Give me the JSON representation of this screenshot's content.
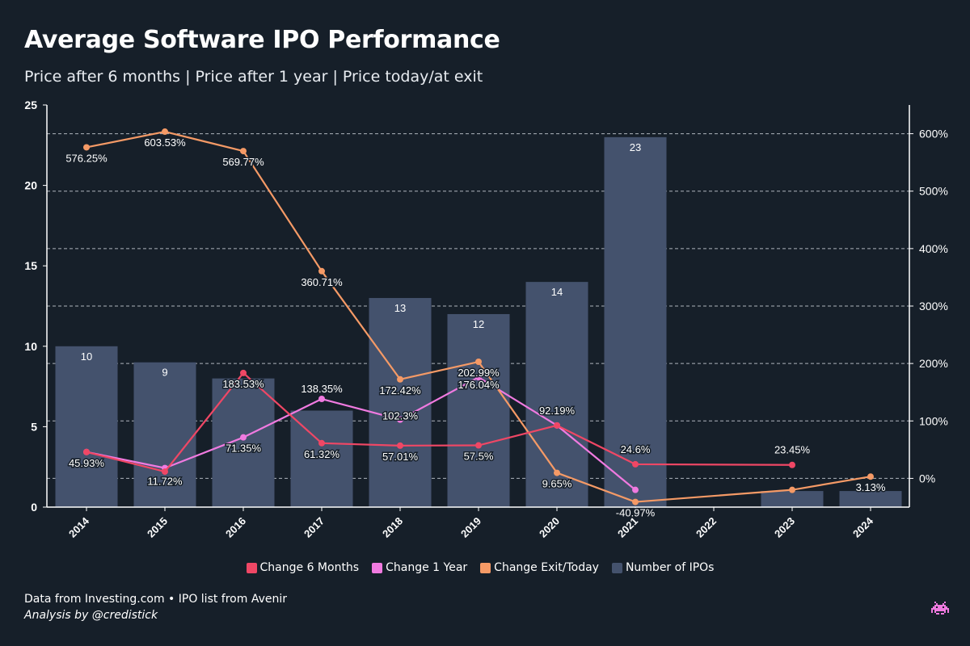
{
  "header": {
    "title": "Average Software IPO Performance",
    "subtitle": "Price after 6 months | Price after 1 year | Price today/at exit"
  },
  "footer": {
    "source": "Data from Investing.com • IPO list from Avenir",
    "credit": "Analysis by @credistick",
    "logo_icon": "space-invader-icon"
  },
  "colors": {
    "background": "#161f29",
    "bars": "#44526d",
    "change_6m": "#ef4765",
    "change_1y": "#f07ae0",
    "change_exit": "#f59a66"
  },
  "chart_data": {
    "type": "bar",
    "categories": [
      "2014",
      "2015",
      "2016",
      "2017",
      "2018",
      "2019",
      "2020",
      "2021",
      "2022",
      "2023",
      "2024"
    ],
    "y_left": {
      "ylim": [
        0,
        25
      ],
      "ticks": [
        0,
        5,
        10,
        15,
        20,
        25
      ]
    },
    "y_right": {
      "ylim": [
        -50,
        650
      ],
      "ticks": [
        0,
        100,
        200,
        300,
        400,
        500,
        600
      ],
      "tick_labels": [
        "0%",
        "100%",
        "200%",
        "300%",
        "400%",
        "500%",
        "600%"
      ]
    },
    "grid": "dashed horizontal at right-axis ticks",
    "legend_position": "bottom-center",
    "series": [
      {
        "name": "Number of IPOs",
        "kind": "bar",
        "axis": "left",
        "values": [
          10,
          9,
          8,
          6,
          13,
          12,
          14,
          23,
          null,
          1,
          1
        ],
        "labels": [
          "10",
          "9",
          "",
          "",
          "13",
          "12",
          "14",
          "23",
          "",
          "",
          ""
        ]
      },
      {
        "name": "Change 6 Months",
        "kind": "line",
        "axis": "right",
        "values": [
          45.93,
          11.72,
          183.53,
          61.32,
          57.01,
          57.5,
          92.19,
          24.6,
          null,
          23.45,
          null
        ],
        "labels": [
          "",
          "",
          "183.53%",
          "61.32%",
          "57.01%",
          "57.5%",
          "92.19%",
          "24.6%",
          "",
          "23.45%",
          ""
        ]
      },
      {
        "name": "Change 1 Year",
        "kind": "line",
        "axis": "right",
        "values": [
          45.93,
          18,
          71.35,
          138.35,
          102.3,
          176.04,
          92.19,
          -20,
          null,
          null,
          null
        ],
        "labels": [
          "45.93%",
          "",
          "71.35%",
          "138.35%",
          "102.3%",
          "176.04%",
          "",
          "",
          "",
          "",
          ""
        ]
      },
      {
        "name": "Change Exit/Today",
        "kind": "line",
        "axis": "right",
        "values": [
          576.25,
          603.53,
          569.77,
          360.71,
          172.42,
          202.99,
          9.65,
          -40.97,
          null,
          -20,
          3.13
        ],
        "labels": [
          "576.25%",
          "603.53%",
          "569.77%",
          "360.71%",
          "172.42%",
          "202.99%",
          "9.65%",
          "-40.97%",
          "",
          "",
          "3.13%"
        ]
      }
    ],
    "legend": [
      "Change 6 Months",
      "Change 1 Year",
      "Change Exit/Today",
      "Number of IPOs"
    ],
    "extra_labels": [
      {
        "series": "Change 6 Months",
        "category": "2015",
        "label": "11.72%"
      }
    ]
  }
}
